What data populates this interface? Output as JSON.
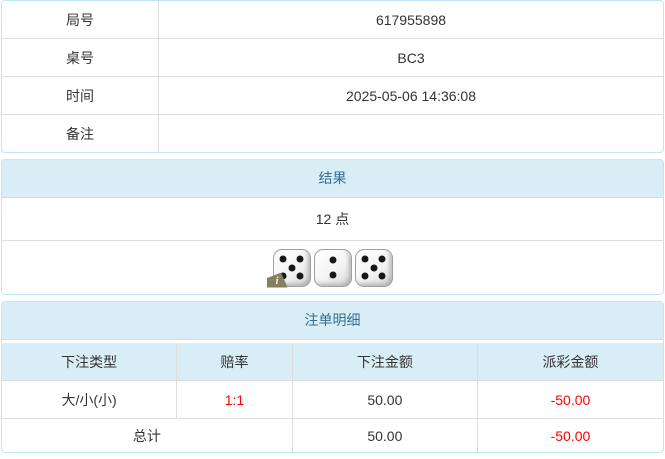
{
  "info_table": {
    "rows": [
      {
        "label": "局号",
        "value": "617955898"
      },
      {
        "label": "桌号",
        "value": "BC3"
      },
      {
        "label": "时间",
        "value": "2025-05-06 14:36:08"
      },
      {
        "label": "备注",
        "value": ""
      }
    ]
  },
  "result_panel": {
    "title": "结果",
    "points": "12 点",
    "dice": [
      5,
      2,
      5
    ],
    "info_badge": "i"
  },
  "bets_panel": {
    "title": "注单明细",
    "columns": [
      "下注类型",
      "赔率",
      "下注金额",
      "派彩金额"
    ],
    "rows": [
      {
        "type": "大/小(小)",
        "odds": "1:1",
        "bet": "50.00",
        "payout": "-50.00"
      }
    ],
    "total": {
      "label": "总计",
      "bet": "50.00",
      "payout": "-50.00"
    }
  },
  "colors": {
    "panel_border": "#bce8f1",
    "heading_bg": "#d9edf7",
    "heading_text": "#31708f",
    "row_divider": "#dddddd",
    "body_text": "#333333",
    "negative_text": "#ff0000",
    "badge_bg": "#857f60"
  }
}
